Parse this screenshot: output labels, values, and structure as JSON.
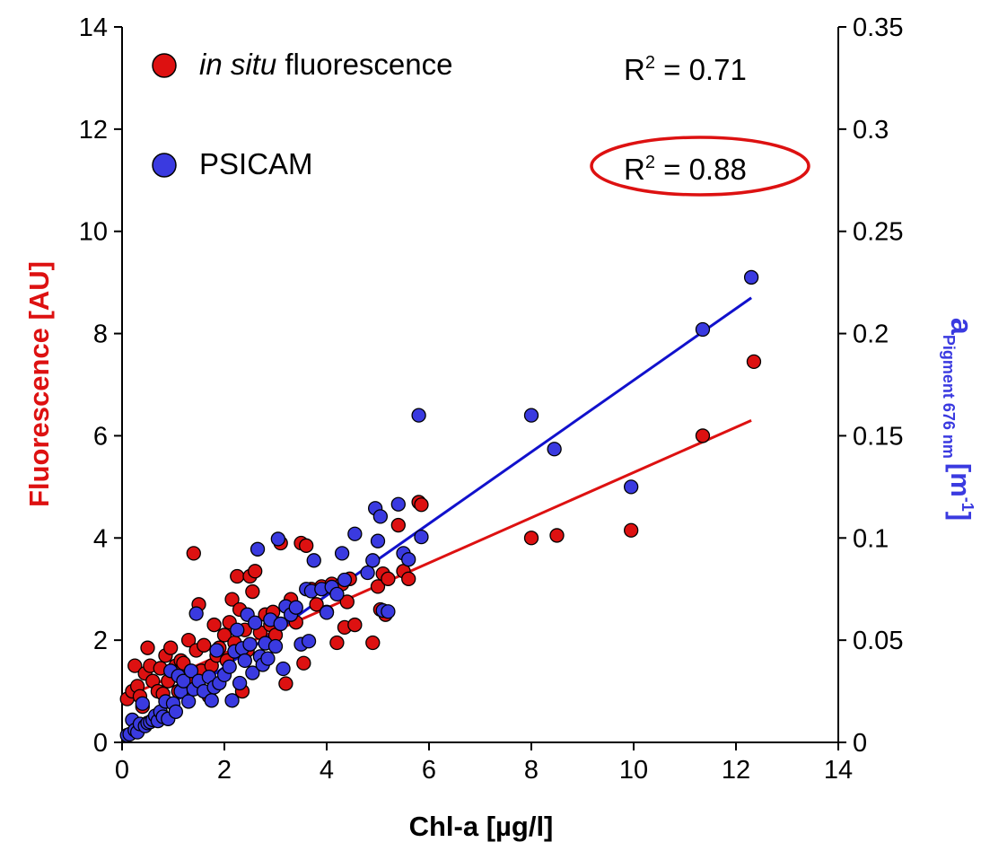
{
  "chart_data": {
    "type": "scatter",
    "xlabel": "Chl-a [µg/l]",
    "ylabel": "Fluorescence [AU]",
    "y2label": {
      "main": "a",
      "sub": "Pigment 676 nm",
      "unit_open": "[m",
      "unit_sup": "-1",
      "unit_close": "]"
    },
    "xlim": [
      0,
      14
    ],
    "ylim": [
      0,
      14
    ],
    "y2lim": [
      0,
      0.35
    ],
    "xticks": [
      "0",
      "2",
      "4",
      "6",
      "8",
      "10",
      "12",
      "14"
    ],
    "yticks": [
      "0",
      "2",
      "4",
      "6",
      "8",
      "10",
      "12",
      "14"
    ],
    "y2ticks": [
      "0",
      "0.05",
      "0.1",
      "0.15",
      "0.2",
      "0.25",
      "0.3",
      "0.35"
    ],
    "colors": {
      "fluorescence": "#dd1111",
      "psicam": "#3a3ae0",
      "fit_red": "#dd1111",
      "fit_blue": "#1111cc",
      "highlight": "#dd1111"
    },
    "legend_placement": "top-left",
    "annotations": {
      "r2_fluorescence": {
        "prefix": "R",
        "sup": "2",
        "suffix": " = 0.71"
      },
      "r2_psicam": {
        "prefix": "R",
        "sup": "2",
        "suffix": " = 0.88",
        "circled": true
      }
    },
    "series": [
      {
        "name": "in situ fluorescence",
        "legend": {
          "italic": "in situ",
          "rest": " fluorescence"
        },
        "axis": "left",
        "fit": {
          "x": [
            0.1,
            12.3
          ],
          "y": [
            0.9,
            6.3
          ]
        },
        "points": [
          [
            0.1,
            0.85
          ],
          [
            0.2,
            1.0
          ],
          [
            0.25,
            1.5
          ],
          [
            0.3,
            1.1
          ],
          [
            0.35,
            0.9
          ],
          [
            0.4,
            0.7
          ],
          [
            0.45,
            1.35
          ],
          [
            0.5,
            1.85
          ],
          [
            0.55,
            1.5
          ],
          [
            0.6,
            1.2
          ],
          [
            0.7,
            1.0
          ],
          [
            0.75,
            1.45
          ],
          [
            0.8,
            0.95
          ],
          [
            0.85,
            1.7
          ],
          [
            0.9,
            1.2
          ],
          [
            0.95,
            1.85
          ],
          [
            1.0,
            1.4
          ],
          [
            1.05,
            1.5
          ],
          [
            1.1,
            1.0
          ],
          [
            1.15,
            1.6
          ],
          [
            1.2,
            1.55
          ],
          [
            1.3,
            2.0
          ],
          [
            1.35,
            1.2
          ],
          [
            1.4,
            3.7
          ],
          [
            1.45,
            1.8
          ],
          [
            1.5,
            2.7
          ],
          [
            1.55,
            1.4
          ],
          [
            1.6,
            1.9
          ],
          [
            1.7,
            0.9
          ],
          [
            1.75,
            1.5
          ],
          [
            1.8,
            2.3
          ],
          [
            1.85,
            1.7
          ],
          [
            1.9,
            1.85
          ],
          [
            2.0,
            2.1
          ],
          [
            2.05,
            1.6
          ],
          [
            2.1,
            2.35
          ],
          [
            2.15,
            2.8
          ],
          [
            2.2,
            1.95
          ],
          [
            2.25,
            3.25
          ],
          [
            2.3,
            2.6
          ],
          [
            2.35,
            1.0
          ],
          [
            2.4,
            2.2
          ],
          [
            2.45,
            1.8
          ],
          [
            2.5,
            3.25
          ],
          [
            2.55,
            2.95
          ],
          [
            2.6,
            3.35
          ],
          [
            2.7,
            2.15
          ],
          [
            2.75,
            1.6
          ],
          [
            2.8,
            2.5
          ],
          [
            2.9,
            2.3
          ],
          [
            2.95,
            2.55
          ],
          [
            3.0,
            2.1
          ],
          [
            3.1,
            3.9
          ],
          [
            3.2,
            1.15
          ],
          [
            3.3,
            2.8
          ],
          [
            3.4,
            2.35
          ],
          [
            3.5,
            3.9
          ],
          [
            3.55,
            1.55
          ],
          [
            3.6,
            3.85
          ],
          [
            3.7,
            3.0
          ],
          [
            3.8,
            2.7
          ],
          [
            3.9,
            3.05
          ],
          [
            4.0,
            2.55
          ],
          [
            4.1,
            3.1
          ],
          [
            4.2,
            1.95
          ],
          [
            4.3,
            3.1
          ],
          [
            4.35,
            2.25
          ],
          [
            4.4,
            2.75
          ],
          [
            4.45,
            3.2
          ],
          [
            4.55,
            2.3
          ],
          [
            4.9,
            1.95
          ],
          [
            5.0,
            3.05
          ],
          [
            5.05,
            2.6
          ],
          [
            5.1,
            3.3
          ],
          [
            5.15,
            2.5
          ],
          [
            5.2,
            3.2
          ],
          [
            5.4,
            4.25
          ],
          [
            5.5,
            3.35
          ],
          [
            5.6,
            3.2
          ],
          [
            5.8,
            4.7
          ],
          [
            5.85,
            4.65
          ],
          [
            8.0,
            4.0
          ],
          [
            8.5,
            4.05
          ],
          [
            9.95,
            4.15
          ],
          [
            11.35,
            6.0
          ],
          [
            12.35,
            7.45
          ]
        ]
      },
      {
        "name": "PSICAM",
        "axis": "right",
        "fit": {
          "x": [
            0.1,
            12.3
          ],
          "y": [
            0.0035,
            0.2175
          ]
        },
        "points": [
          [
            0.1,
            0.0035
          ],
          [
            0.15,
            0.004
          ],
          [
            0.2,
            0.011
          ],
          [
            0.25,
            0.006
          ],
          [
            0.3,
            0.005
          ],
          [
            0.35,
            0.009
          ],
          [
            0.4,
            0.019
          ],
          [
            0.45,
            0.008
          ],
          [
            0.5,
            0.0095
          ],
          [
            0.55,
            0.01
          ],
          [
            0.6,
            0.011
          ],
          [
            0.65,
            0.013
          ],
          [
            0.7,
            0.0105
          ],
          [
            0.75,
            0.015
          ],
          [
            0.8,
            0.0125
          ],
          [
            0.85,
            0.02
          ],
          [
            0.9,
            0.0115
          ],
          [
            0.95,
            0.035
          ],
          [
            1.0,
            0.019
          ],
          [
            1.05,
            0.015
          ],
          [
            1.1,
            0.0325
          ],
          [
            1.15,
            0.025
          ],
          [
            1.2,
            0.03
          ],
          [
            1.3,
            0.02
          ],
          [
            1.35,
            0.035
          ],
          [
            1.4,
            0.026
          ],
          [
            1.45,
            0.063
          ],
          [
            1.5,
            0.03
          ],
          [
            1.6,
            0.025
          ],
          [
            1.7,
            0.032
          ],
          [
            1.75,
            0.0205
          ],
          [
            1.8,
            0.027
          ],
          [
            1.85,
            0.045
          ],
          [
            1.9,
            0.029
          ],
          [
            2.0,
            0.033
          ],
          [
            2.1,
            0.037
          ],
          [
            2.15,
            0.0205
          ],
          [
            2.2,
            0.0445
          ],
          [
            2.25,
            0.055
          ],
          [
            2.3,
            0.029
          ],
          [
            2.35,
            0.046
          ],
          [
            2.4,
            0.04
          ],
          [
            2.45,
            0.0625
          ],
          [
            2.5,
            0.048
          ],
          [
            2.55,
            0.034
          ],
          [
            2.6,
            0.0585
          ],
          [
            2.65,
            0.0945
          ],
          [
            2.7,
            0.042
          ],
          [
            2.75,
            0.038
          ],
          [
            2.8,
            0.0485
          ],
          [
            2.85,
            0.041
          ],
          [
            2.9,
            0.06
          ],
          [
            3.0,
            0.047
          ],
          [
            3.05,
            0.0995
          ],
          [
            3.1,
            0.058
          ],
          [
            3.15,
            0.036
          ],
          [
            3.2,
            0.0665
          ],
          [
            3.3,
            0.0625
          ],
          [
            3.4,
            0.066
          ],
          [
            3.5,
            0.048
          ],
          [
            3.6,
            0.075
          ],
          [
            3.65,
            0.0495
          ],
          [
            3.7,
            0.074
          ],
          [
            3.75,
            0.089
          ],
          [
            3.9,
            0.075
          ],
          [
            4.0,
            0.0635
          ],
          [
            4.1,
            0.076
          ],
          [
            4.2,
            0.0725
          ],
          [
            4.3,
            0.0925
          ],
          [
            4.35,
            0.0795
          ],
          [
            4.55,
            0.102
          ],
          [
            4.8,
            0.083
          ],
          [
            4.9,
            0.089
          ],
          [
            4.95,
            0.1145
          ],
          [
            5.0,
            0.0985
          ],
          [
            5.05,
            0.1105
          ],
          [
            5.1,
            0.0645
          ],
          [
            5.2,
            0.064
          ],
          [
            5.4,
            0.1165
          ],
          [
            5.5,
            0.0925
          ],
          [
            5.6,
            0.0895
          ],
          [
            5.8,
            0.16
          ],
          [
            5.85,
            0.1005
          ],
          [
            8.0,
            0.16
          ],
          [
            8.45,
            0.1435
          ],
          [
            9.95,
            0.125
          ],
          [
            11.35,
            0.202
          ],
          [
            12.3,
            0.2275
          ]
        ]
      }
    ]
  }
}
